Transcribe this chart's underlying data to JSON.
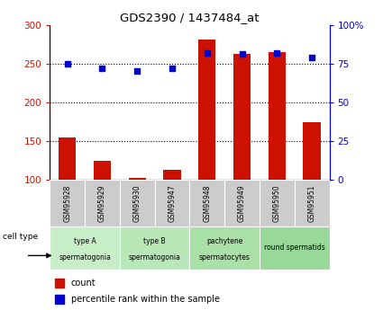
{
  "title": "GDS2390 / 1437484_at",
  "samples": [
    "GSM95928",
    "GSM95929",
    "GSM95930",
    "GSM95947",
    "GSM95948",
    "GSM95949",
    "GSM95950",
    "GSM95951"
  ],
  "count_values": [
    155,
    124,
    103,
    113,
    281,
    263,
    265,
    174
  ],
  "percentile_values": [
    75,
    72,
    70,
    72,
    82,
    81,
    82,
    79
  ],
  "cell_type_groups": [
    {
      "label_top": "type A",
      "label_bot": "spermatogonia",
      "start": 0,
      "end": 2,
      "color": "#c8eec8"
    },
    {
      "label_top": "type B",
      "label_bot": "spermatogonia",
      "start": 2,
      "end": 4,
      "color": "#b8e8b8"
    },
    {
      "label_top": "pachytene",
      "label_bot": "spermatocytes",
      "start": 4,
      "end": 6,
      "color": "#a8e0a8"
    },
    {
      "label_top": "round spermatids",
      "label_bot": "",
      "start": 6,
      "end": 8,
      "color": "#98d898"
    }
  ],
  "ylim_left": [
    100,
    300
  ],
  "ylim_right": [
    0,
    100
  ],
  "yticks_left": [
    100,
    150,
    200,
    250,
    300
  ],
  "yticks_right": [
    0,
    25,
    50,
    75,
    100
  ],
  "bar_color": "#cc1100",
  "dot_color": "#0000cc",
  "bar_width": 0.5,
  "gray_box_color": "#cccccc",
  "bg_color": "#ffffff"
}
